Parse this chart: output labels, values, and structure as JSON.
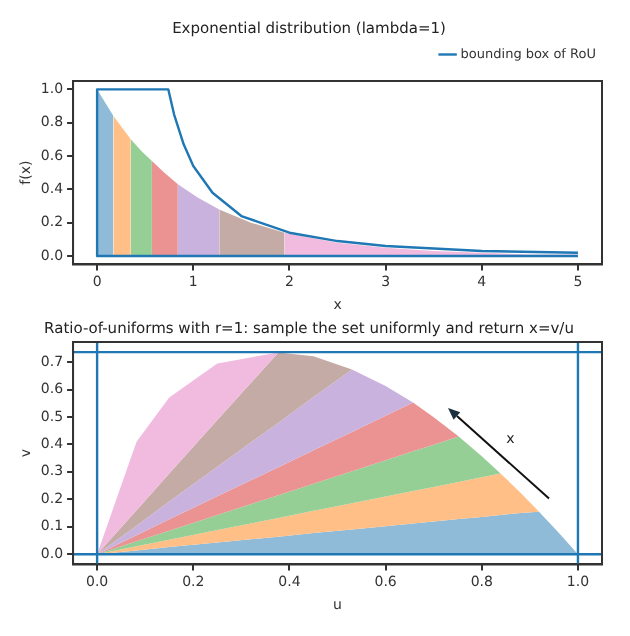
{
  "chart_data": [
    {
      "type": "area",
      "title": "Exponential distribution (lambda=1)",
      "xlabel": "x",
      "ylabel": "f(x)",
      "xlim": [
        -0.25,
        5.25
      ],
      "ylim": [
        -0.05,
        1.05
      ],
      "xticks": [
        0,
        1,
        2,
        3,
        4,
        5
      ],
      "yticks": [
        {
          "value": 0,
          "label": "0.0"
        },
        {
          "value": 0.2,
          "label": "0.2"
        },
        {
          "value": 0.4,
          "label": "0.4"
        },
        {
          "value": 0.6,
          "label": "0.6"
        },
        {
          "value": 0.8,
          "label": "0.8"
        },
        {
          "value": 1,
          "label": "1.0"
        }
      ],
      "legend": "top right",
      "series": [
        {
          "color": "#8fbbd9",
          "x": [
            0,
            0.085,
            0.17
          ],
          "values": [
            1,
            0.92,
            0.84
          ]
        },
        {
          "color": "#ffbf86",
          "x": [
            0.17,
            0.26,
            0.35
          ],
          "values": [
            0.84,
            0.77,
            0.7
          ]
        },
        {
          "color": "#95cf95",
          "x": [
            0.35,
            0.46,
            0.57
          ],
          "values": [
            0.7,
            0.63,
            0.57
          ]
        },
        {
          "color": "#eb9393",
          "x": [
            0.57,
            0.7,
            0.84
          ],
          "values": [
            0.57,
            0.5,
            0.43
          ]
        },
        {
          "color": "#c9b3de",
          "x": [
            0.84,
            1.05,
            1.27
          ],
          "values": [
            0.43,
            0.35,
            0.28
          ]
        },
        {
          "color": "#c5aba5",
          "x": [
            1.27,
            1.6,
            1.95
          ],
          "values": [
            0.28,
            0.2,
            0.14
          ]
        },
        {
          "color": "#f1bbe0",
          "x": [
            1.95,
            2.5,
            3,
            3.5,
            4,
            4.5,
            5
          ],
          "values": [
            0.14,
            0.08,
            0.05,
            0.03,
            0.02,
            0.01,
            0.01
          ]
        },
        {
          "type": "line",
          "name": "bounding box of RoU",
          "color": "#1f77b4",
          "x": [
            5,
            0,
            0,
            0.74,
            0.8,
            0.9,
            1,
            1.2,
            1.5,
            2,
            2.5,
            3,
            4,
            5
          ],
          "values": [
            0,
            0,
            1,
            1,
            0.85,
            0.67,
            0.54,
            0.38,
            0.24,
            0.14,
            0.09,
            0.06,
            0.03,
            0.02
          ]
        }
      ]
    },
    {
      "type": "area",
      "stacked": true,
      "title": "Ratio-of-uniforms with r=1: sample the set uniformly and return x=v/u",
      "xlabel": "u",
      "ylabel": "v",
      "x": [
        0,
        0.082,
        0.15,
        0.25,
        0.377,
        0.45,
        0.53,
        0.6,
        0.657,
        0.7,
        0.752,
        0.8,
        0.839,
        0.88,
        0.919,
        0.96,
        1
      ],
      "xlim": [
        -0.05,
        1.05
      ],
      "ylim": [
        -0.037,
        0.773
      ],
      "xticks": [
        {
          "value": 0,
          "label": "0.0"
        },
        {
          "value": 0.2,
          "label": "0.2"
        },
        {
          "value": 0.4,
          "label": "0.4"
        },
        {
          "value": 0.6,
          "label": "0.6"
        },
        {
          "value": 0.8,
          "label": "0.8"
        },
        {
          "value": 1,
          "label": "1.0"
        }
      ],
      "yticks": [
        {
          "value": 0,
          "label": "0.0"
        },
        {
          "value": 0.1,
          "label": "0.1"
        },
        {
          "value": 0.2,
          "label": "0.2"
        },
        {
          "value": 0.3,
          "label": "0.3"
        },
        {
          "value": 0.4,
          "label": "0.4"
        },
        {
          "value": 0.5,
          "label": "0.5"
        },
        {
          "value": 0.6,
          "label": "0.6"
        },
        {
          "value": 0.7,
          "label": "0.7"
        }
      ],
      "annotations": [
        "x"
      ],
      "series": [
        {
          "color": "#8fbbd9",
          "values": [
            0,
            0.014,
            0.026,
            0.043,
            0.064,
            0.077,
            0.09,
            0.102,
            0.112,
            0.119,
            0.128,
            0.136,
            0.143,
            0.15,
            0.155,
            0.078,
            0
          ]
        },
        {
          "color": "#ffbf86",
          "x": [
            0,
            0.082,
            0.15,
            0.25,
            0.377,
            0.45,
            0.53,
            0.6,
            0.657,
            0.7,
            0.752,
            0.8,
            0.839,
            0.88,
            0.919
          ],
          "values": [
            0,
            0.015,
            0.027,
            0.045,
            0.068,
            0.081,
            0.096,
            0.108,
            0.118,
            0.126,
            0.135,
            0.144,
            0.151,
            0.075,
            0
          ]
        },
        {
          "color": "#95cf95",
          "x": [
            0,
            0.082,
            0.15,
            0.25,
            0.377,
            0.45,
            0.53,
            0.6,
            0.657,
            0.7,
            0.752,
            0.8,
            0.839
          ],
          "values": [
            0,
            0.018,
            0.033,
            0.055,
            0.083,
            0.099,
            0.116,
            0.132,
            0.145,
            0.154,
            0.166,
            0.077,
            0
          ]
        },
        {
          "color": "#eb9393",
          "x": [
            0,
            0.082,
            0.15,
            0.25,
            0.377,
            0.45,
            0.53,
            0.6,
            0.657,
            0.7,
            0.752
          ],
          "values": [
            0,
            0.022,
            0.041,
            0.068,
            0.102,
            0.122,
            0.143,
            0.162,
            0.178,
            0.1,
            0
          ]
        },
        {
          "color": "#c9b3de",
          "x": [
            0,
            0.082,
            0.15,
            0.25,
            0.377,
            0.45,
            0.53,
            0.6,
            0.657
          ],
          "values": [
            0,
            0.035,
            0.065,
            0.108,
            0.162,
            0.194,
            0.228,
            0.109,
            0
          ]
        },
        {
          "color": "#c5aba5",
          "x": [
            0,
            0.082,
            0.15,
            0.25,
            0.377,
            0.45,
            0.53
          ],
          "values": [
            0,
            0.056,
            0.102,
            0.17,
            0.256,
            0.148,
            0
          ]
        },
        {
          "color": "#f1bbe0",
          "x": [
            0,
            0.082,
            0.15,
            0.25,
            0.377
          ],
          "values": [
            0,
            0.25,
            0.277,
            0.206,
            0
          ]
        }
      ],
      "ref_lines": [
        {
          "axis": "y",
          "value": 0,
          "color": "#1f77b4"
        },
        {
          "axis": "y",
          "value": 0.736,
          "color": "#1f77b4"
        },
        {
          "axis": "x",
          "value": 0,
          "color": "#1f77b4"
        },
        {
          "axis": "x",
          "value": 1,
          "color": "#1f77b4"
        }
      ]
    }
  ]
}
